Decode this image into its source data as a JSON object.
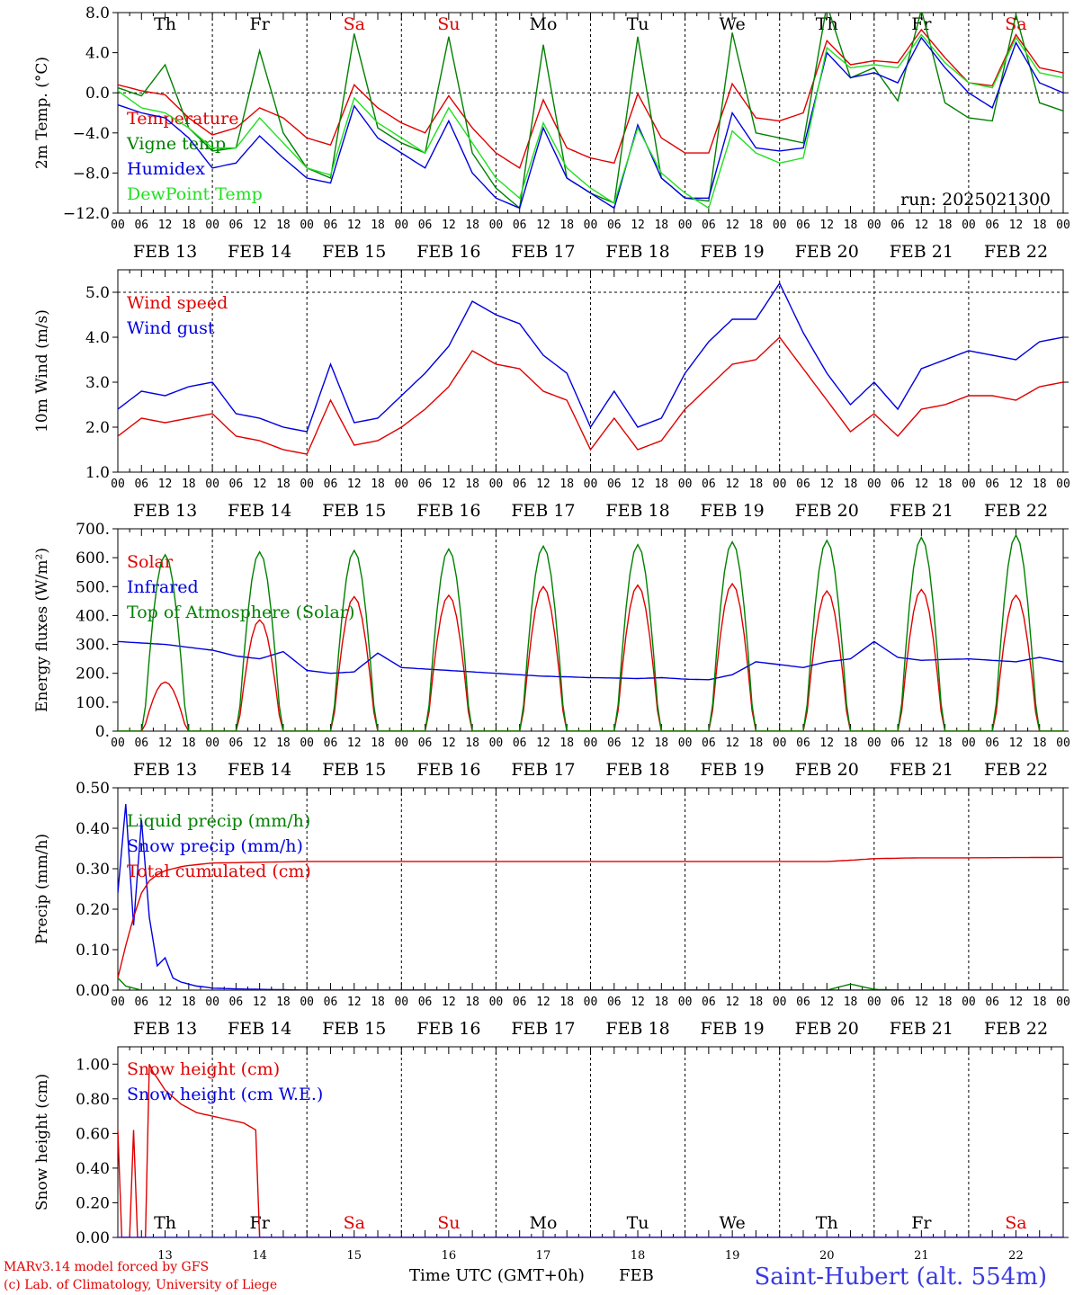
{
  "chart_data": [
    {
      "type": "line",
      "ylabel": "2m Temp. (°C)",
      "ylim": [
        -12,
        8
      ],
      "yticks": [
        "−12.0",
        "−8.0",
        "−4.0",
        "0.0",
        "4.0",
        "8.0"
      ],
      "ytick_values": [
        -12,
        -8,
        -4,
        0,
        4,
        8
      ],
      "dashed_y": [
        0
      ],
      "x_hours": [
        0,
        6,
        12,
        18,
        24,
        30,
        36,
        42,
        48,
        54,
        60,
        66,
        72,
        78,
        84,
        90,
        96,
        102,
        108,
        114,
        120,
        126,
        132,
        138,
        144,
        150,
        156,
        162,
        168,
        174,
        180,
        186,
        192,
        198,
        204,
        210,
        216,
        222,
        228,
        234,
        240
      ],
      "series": [
        {
          "name": "Temperature",
          "color": "#e00000",
          "values": [
            0.8,
            0.2,
            -0.2,
            -2.5,
            -4.2,
            -3.5,
            -1.5,
            -2.5,
            -4.5,
            -5.2,
            0.8,
            -1.5,
            -3.0,
            -4.0,
            -0.3,
            -3.5,
            -6.0,
            -7.5,
            -0.7,
            -5.5,
            -6.5,
            -7.0,
            -0.1,
            -4.5,
            -6.0,
            -6.0,
            0.9,
            -2.5,
            -2.8,
            -2.0,
            5.2,
            2.8,
            3.2,
            3.0,
            6.3,
            3.5,
            1.0,
            0.7,
            5.8,
            2.5,
            2.0
          ]
        },
        {
          "name": "Vigne temp",
          "color": "#008000",
          "values": [
            0.5,
            -0.3,
            2.8,
            -3.5,
            -5.8,
            -5.5,
            4.2,
            -4.0,
            -7.5,
            -8.5,
            5.9,
            -3.5,
            -5.0,
            -6.0,
            5.6,
            -6.0,
            -9.5,
            -11.5,
            4.8,
            -8.5,
            -10.0,
            -11.0,
            5.6,
            -8.5,
            -10.5,
            -10.8,
            6.0,
            -4.0,
            -4.5,
            -5.0,
            8.8,
            1.5,
            2.5,
            -0.8,
            8.3,
            -1.0,
            -2.5,
            -2.8,
            7.8,
            -1.0,
            -1.8
          ]
        },
        {
          "name": "Humidex",
          "color": "#0000e0",
          "values": [
            -1.2,
            -2.0,
            -2.5,
            -4.5,
            -7.5,
            -7.0,
            -4.3,
            -6.5,
            -8.5,
            -9.0,
            -1.3,
            -4.5,
            -6.0,
            -7.5,
            -2.8,
            -8.0,
            -10.5,
            -11.5,
            -3.5,
            -8.5,
            -10.0,
            -11.5,
            -3.2,
            -8.5,
            -10.5,
            -10.5,
            -2.0,
            -5.5,
            -5.8,
            -5.5,
            4.0,
            1.5,
            2.0,
            1.0,
            5.5,
            2.5,
            0.0,
            -1.5,
            5.0,
            1.0,
            0.0
          ]
        },
        {
          "name": "DewPoint Temp",
          "color": "#20e020",
          "values": [
            0.2,
            -1.5,
            -2.0,
            -3.5,
            -5.5,
            -5.5,
            -2.5,
            -5.0,
            -7.5,
            -8.2,
            -0.5,
            -3.0,
            -4.5,
            -6.0,
            -1.5,
            -5.0,
            -8.5,
            -10.5,
            -3.0,
            -7.5,
            -9.5,
            -11.0,
            -3.5,
            -8.0,
            -10.0,
            -11.5,
            -3.8,
            -6.0,
            -7.0,
            -6.5,
            4.5,
            2.5,
            2.8,
            2.5,
            5.8,
            3.0,
            1.0,
            0.5,
            5.5,
            2.0,
            1.5
          ]
        }
      ],
      "annotation": "run: 2025021300"
    },
    {
      "type": "line",
      "ylabel": "10m Wind (m/s)",
      "ylim": [
        1,
        5.5
      ],
      "yticks": [
        "1.0",
        "2.0",
        "3.0",
        "4.0",
        "5.0"
      ],
      "ytick_values": [
        1,
        2,
        3,
        4,
        5
      ],
      "dashed_y": [
        5
      ],
      "x_hours": [
        0,
        6,
        12,
        18,
        24,
        30,
        36,
        42,
        48,
        54,
        60,
        66,
        72,
        78,
        84,
        90,
        96,
        102,
        108,
        114,
        120,
        126,
        132,
        138,
        144,
        150,
        156,
        162,
        168,
        174,
        180,
        186,
        192,
        198,
        204,
        210,
        216,
        222,
        228,
        234,
        240
      ],
      "series": [
        {
          "name": "Wind speed",
          "color": "#e00000",
          "values": [
            1.8,
            2.2,
            2.1,
            2.2,
            2.3,
            1.8,
            1.7,
            1.5,
            1.4,
            2.6,
            1.6,
            1.7,
            2.0,
            2.4,
            2.9,
            3.7,
            3.4,
            3.3,
            2.8,
            2.6,
            1.5,
            2.2,
            1.5,
            1.7,
            2.4,
            2.9,
            3.4,
            3.5,
            4.0,
            3.3,
            2.6,
            1.9,
            2.3,
            1.8,
            2.4,
            2.5,
            2.7,
            2.7,
            2.6,
            2.9,
            3.0
          ]
        },
        {
          "name": "Wind gust",
          "color": "#0000e0",
          "values": [
            2.4,
            2.8,
            2.7,
            2.9,
            3.0,
            2.3,
            2.2,
            2.0,
            1.9,
            3.4,
            2.1,
            2.2,
            2.7,
            3.2,
            3.8,
            4.8,
            4.5,
            4.3,
            3.6,
            3.2,
            2.0,
            2.8,
            2.0,
            2.2,
            3.2,
            3.9,
            4.4,
            4.4,
            5.2,
            4.1,
            3.2,
            2.5,
            3.0,
            2.4,
            3.3,
            3.5,
            3.7,
            3.6,
            3.5,
            3.9,
            4.0
          ]
        }
      ]
    },
    {
      "type": "line",
      "ylabel": "Energy fluxes (W/m²)",
      "ylim": [
        0,
        700
      ],
      "yticks": [
        "0.",
        "100.",
        "200.",
        "300.",
        "400.",
        "500.",
        "600.",
        "700."
      ],
      "ytick_values": [
        0,
        100,
        200,
        300,
        400,
        500,
        600,
        700
      ],
      "x_hours": [
        0,
        6,
        12,
        18,
        24,
        30,
        36,
        42,
        48,
        54,
        60,
        66,
        72,
        78,
        84,
        90,
        96,
        102,
        108,
        114,
        120,
        126,
        132,
        138,
        144,
        150,
        156,
        162,
        168,
        174,
        180,
        186,
        192,
        198,
        204,
        210,
        216,
        222,
        228,
        234,
        240
      ],
      "series": [
        {
          "name": "Solar",
          "color": "#e00000",
          "daily_peaks": [
            170,
            385,
            465,
            470,
            500,
            505,
            510,
            485,
            490,
            470
          ]
        },
        {
          "name": "Infrared",
          "color": "#0000e0",
          "values": [
            310,
            305,
            300,
            290,
            280,
            260,
            250,
            275,
            210,
            200,
            205,
            270,
            220,
            215,
            210,
            205,
            200,
            195,
            190,
            188,
            185,
            184,
            182,
            185,
            180,
            178,
            195,
            240,
            230,
            220,
            240,
            250,
            310,
            255,
            245,
            248,
            250,
            245,
            240,
            255,
            240
          ]
        },
        {
          "name": "Top of Atmosphere (Solar)",
          "color": "#008000",
          "daily_peaks": [
            610,
            620,
            625,
            630,
            640,
            645,
            655,
            660,
            670,
            678
          ]
        }
      ]
    },
    {
      "type": "line",
      "ylabel": "Precip (mm/h)",
      "ylim": [
        0,
        0.5
      ],
      "yticks": [
        "0.00",
        "0.10",
        "0.20",
        "0.30",
        "0.40",
        "0.50"
      ],
      "ytick_values": [
        0,
        0.1,
        0.2,
        0.3,
        0.4,
        0.5
      ],
      "x_hours": [
        0,
        2,
        4,
        6,
        8,
        10,
        12,
        14,
        16,
        18,
        20,
        22,
        24,
        30,
        36,
        42,
        48,
        60,
        72,
        96,
        120,
        144,
        168,
        180,
        186,
        192,
        198,
        204,
        216,
        240
      ],
      "series": [
        {
          "name": "Liquid precip (mm/h)",
          "color": "#008000",
          "values": [
            0.03,
            0.01,
            0.005,
            0,
            0,
            0,
            0,
            0,
            0,
            0,
            0,
            0,
            0,
            0,
            0,
            0,
            0,
            0,
            0,
            0,
            0,
            0,
            0,
            0,
            0.015,
            0.002,
            0,
            0,
            0,
            0
          ]
        },
        {
          "name": "Snow precip (mm/h)",
          "color": "#0000e0",
          "values": [
            0.24,
            0.46,
            0.16,
            0.42,
            0.18,
            0.06,
            0.08,
            0.03,
            0.02,
            0.015,
            0.01,
            0.008,
            0.005,
            0.003,
            0.002,
            0.001,
            0,
            0,
            0,
            0,
            0,
            0,
            0,
            0,
            0,
            0,
            0,
            0,
            0,
            0
          ]
        },
        {
          "name": "Total cumulated (cm)",
          "color": "#e00000",
          "values": [
            0.03,
            0.11,
            0.18,
            0.24,
            0.27,
            0.285,
            0.295,
            0.3,
            0.305,
            0.308,
            0.31,
            0.312,
            0.314,
            0.315,
            0.316,
            0.317,
            0.318,
            0.318,
            0.318,
            0.318,
            0.318,
            0.318,
            0.318,
            0.318,
            0.321,
            0.325,
            0.326,
            0.327,
            0.327,
            0.328
          ]
        }
      ]
    },
    {
      "type": "line",
      "ylabel": "Snow height (cm)",
      "ylim": [
        0,
        1.1
      ],
      "yticks": [
        "0.00",
        "0.20",
        "0.40",
        "0.60",
        "0.80",
        "1.00"
      ],
      "ytick_values": [
        0,
        0.2,
        0.4,
        0.6,
        0.8,
        1.0
      ],
      "x_hours": [
        0,
        1,
        2,
        3,
        4,
        5,
        6,
        7,
        8,
        9,
        10,
        12,
        16,
        20,
        24,
        28,
        32,
        35,
        36,
        240
      ],
      "series": [
        {
          "name": "Snow height (cm)",
          "color": "#e00000",
          "values": [
            0.62,
            0,
            0,
            0,
            0.62,
            0,
            0,
            0,
            1.0,
            0.95,
            0.92,
            0.85,
            0.77,
            0.72,
            0.7,
            0.68,
            0.66,
            0.62,
            0,
            0
          ]
        },
        {
          "name": "Snow height (cm W.E.)",
          "color": "#0000e0",
          "values": [
            0,
            0,
            0,
            0,
            0,
            0,
            0,
            0,
            0,
            0,
            0,
            0,
            0,
            0,
            0,
            0,
            0,
            0,
            0,
            0
          ]
        }
      ]
    }
  ],
  "days_top": [
    {
      "label": "Th",
      "color": "#000000"
    },
    {
      "label": "Fr",
      "color": "#000000"
    },
    {
      "label": "Sa",
      "color": "#e00000"
    },
    {
      "label": "Su",
      "color": "#e00000"
    },
    {
      "label": "Mo",
      "color": "#000000"
    },
    {
      "label": "Tu",
      "color": "#000000"
    },
    {
      "label": "We",
      "color": "#000000"
    },
    {
      "label": "Th",
      "color": "#000000"
    },
    {
      "label": "Fr",
      "color": "#000000"
    },
    {
      "label": "Sa",
      "color": "#e00000"
    }
  ],
  "date_labels": [
    "FEB 13",
    "FEB 14",
    "FEB 15",
    "FEB 16",
    "FEB 17",
    "FEB 18",
    "FEB 19",
    "FEB 20",
    "FEB 21",
    "FEB 22"
  ],
  "hour_ticks": [
    "00",
    "06",
    "12",
    "18"
  ],
  "bottom_day_numbers": [
    "13",
    "14",
    "15",
    "16",
    "17",
    "18",
    "19",
    "20",
    "21",
    "22"
  ],
  "footer": {
    "credit_line1": "MARv3.14 model forced by GFS",
    "credit_line2": "(c) Lab. of Climatology, University of Liege",
    "axis_title": "Time UTC (GMT+0h)",
    "axis_month": "FEB",
    "station": "Saint-Hubert (alt. 554m)"
  },
  "colors": {
    "red": "#e00000",
    "green": "#008000",
    "blue": "#0000e0",
    "light_green": "#20e020",
    "footer_blue": "#3a3ae0"
  }
}
